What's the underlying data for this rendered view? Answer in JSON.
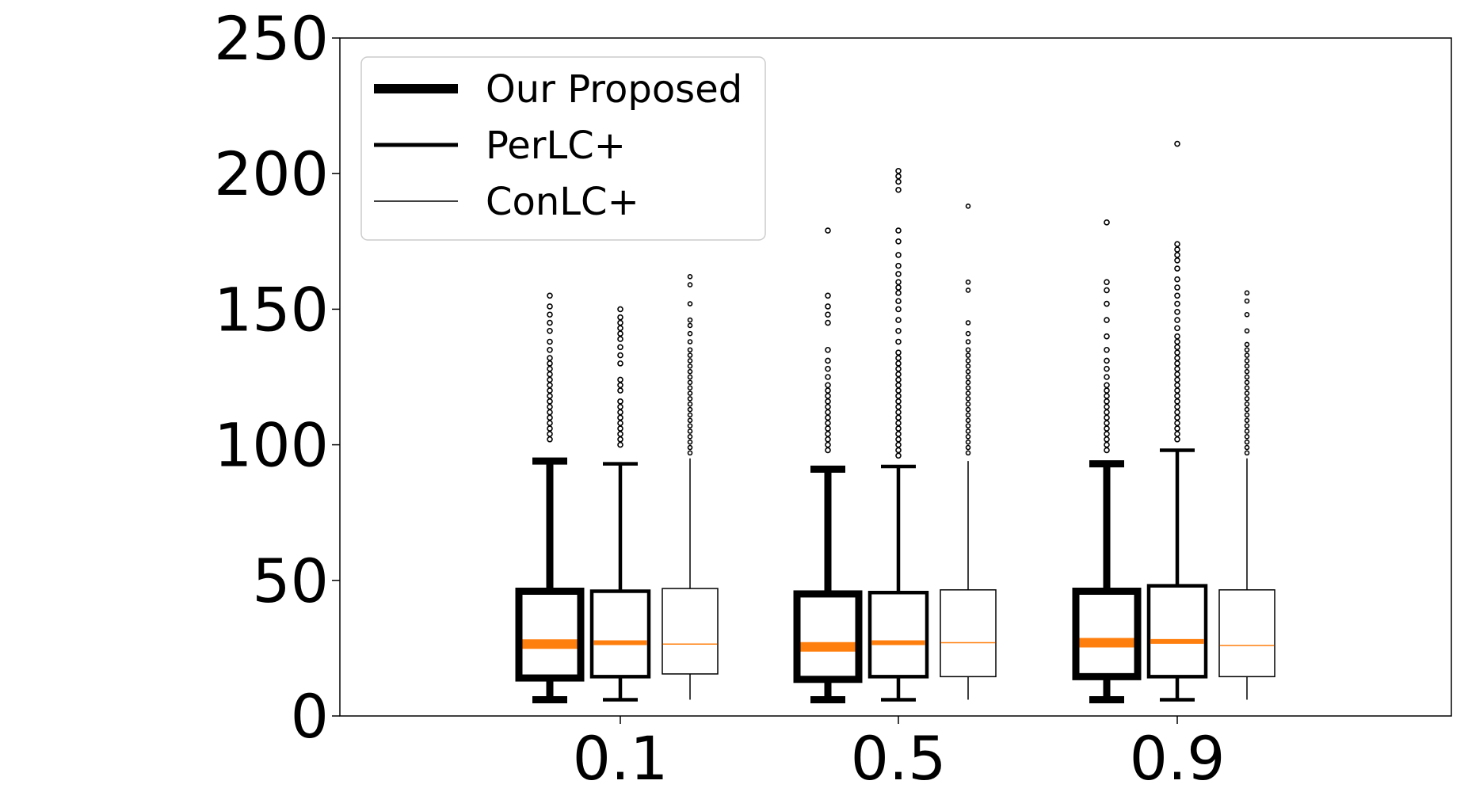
{
  "chart_data": {
    "type": "boxplot",
    "title": "",
    "xlabel": "",
    "ylabel": "",
    "categories": [
      "0.1",
      "0.5",
      "0.9"
    ],
    "yticks": [
      "0",
      "50",
      "100",
      "150",
      "200",
      "250"
    ],
    "ylim": [
      0,
      250
    ],
    "grid": false,
    "legend_position": "top-left",
    "colors": {
      "box": "#000000",
      "median": "#ff7f0e",
      "background": "#ffffff"
    },
    "series": [
      {
        "name": "Our Proposed",
        "boxes": [
          {
            "whislo": 6,
            "q1": 14,
            "med": 26.5,
            "q3": 46,
            "whishi": 94,
            "fliers": [
              102,
              104,
              106,
              108,
              110,
              112,
              114,
              116,
              118,
              120,
              122,
              124,
              126,
              128,
              130,
              132,
              135,
              138,
              142,
              145,
              148,
              151,
              155
            ]
          },
          {
            "whislo": 6,
            "q1": 13.5,
            "med": 25.5,
            "q3": 45,
            "whishi": 91,
            "fliers": [
              98,
              100,
              102,
              104,
              106,
              108,
              110,
              112,
              114,
              116,
              118,
              120,
              122,
              125,
              128,
              131,
              135,
              145,
              148,
              151,
              155,
              179
            ]
          },
          {
            "whislo": 6,
            "q1": 14.5,
            "med": 27,
            "q3": 46,
            "whishi": 93,
            "fliers": [
              98,
              100,
              102,
              104,
              106,
              108,
              110,
              112,
              114,
              116,
              118,
              120,
              122,
              125,
              128,
              131,
              135,
              140,
              146,
              152,
              157,
              160,
              182
            ]
          }
        ]
      },
      {
        "name": "PerLC+",
        "boxes": [
          {
            "whislo": 6,
            "q1": 14.5,
            "med": 27,
            "q3": 46,
            "whishi": 93,
            "fliers": [
              100,
              102,
              104,
              106,
              108,
              110,
              112,
              114,
              116,
              120,
              122,
              124,
              130,
              133,
              136,
              139,
              141,
              143,
              145,
              147,
              150
            ]
          },
          {
            "whislo": 6,
            "q1": 14.5,
            "med": 27,
            "q3": 45.5,
            "whishi": 92,
            "fliers": [
              96,
              98,
              100,
              102,
              104,
              106,
              108,
              110,
              112,
              114,
              116,
              118,
              120,
              122,
              124,
              126,
              128,
              130,
              132,
              134,
              138,
              142,
              146,
              150,
              153,
              156,
              158,
              160,
              163,
              166,
              170,
              175,
              179,
              194,
              197,
              199,
              201
            ]
          },
          {
            "whislo": 6,
            "q1": 14.5,
            "med": 27.5,
            "q3": 48,
            "whishi": 98,
            "fliers": [
              102,
              104,
              106,
              108,
              110,
              112,
              114,
              116,
              118,
              120,
              122,
              124,
              126,
              128,
              130,
              132,
              134,
              136,
              138,
              140,
              143,
              146,
              149,
              152,
              155,
              158,
              161,
              165,
              168,
              170,
              172,
              174,
              211
            ]
          }
        ]
      },
      {
        "name": "ConLC+",
        "boxes": [
          {
            "whislo": 6,
            "q1": 15.5,
            "med": 26.5,
            "q3": 47,
            "whishi": 95,
            "fliers": [
              97,
              99,
              101,
              103,
              105,
              107,
              109,
              111,
              113,
              115,
              117,
              119,
              121,
              123,
              125,
              127,
              129,
              131,
              133,
              135,
              138,
              141,
              144,
              146,
              152,
              159,
              162
            ]
          },
          {
            "whislo": 6,
            "q1": 14.5,
            "med": 27,
            "q3": 46.5,
            "whishi": 94,
            "fliers": [
              97,
              99,
              101,
              103,
              105,
              107,
              109,
              111,
              113,
              115,
              117,
              119,
              121,
              123,
              125,
              127,
              129,
              131,
              133,
              135,
              138,
              141,
              145,
              157,
              160,
              188
            ]
          },
          {
            "whislo": 6,
            "q1": 14.5,
            "med": 26,
            "q3": 46.5,
            "whishi": 95,
            "fliers": [
              97,
              99,
              101,
              103,
              105,
              107,
              109,
              111,
              113,
              115,
              117,
              119,
              121,
              123,
              125,
              127,
              129,
              131,
              133,
              135,
              137,
              142,
              148,
              153,
              156
            ]
          }
        ]
      }
    ]
  }
}
